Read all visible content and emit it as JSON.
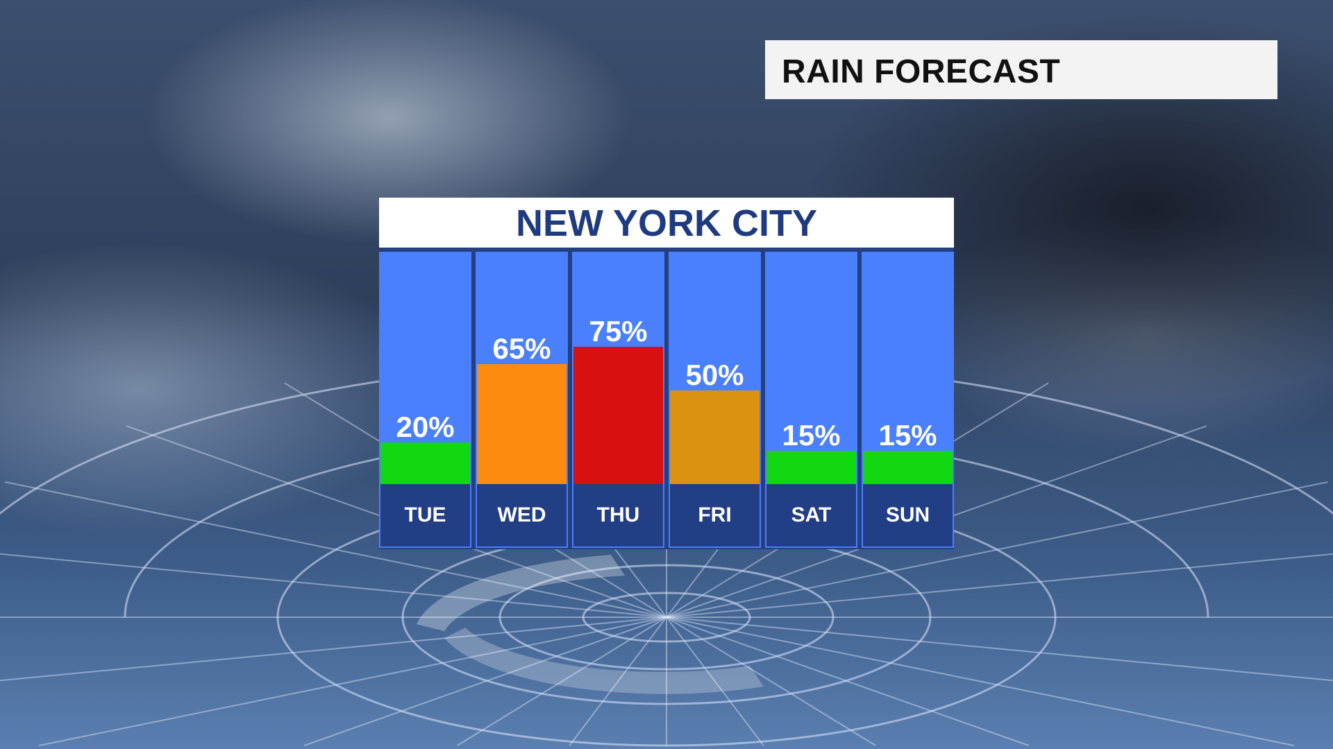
{
  "header": {
    "title": "RAIN FORECAST"
  },
  "chart_data": {
    "type": "bar",
    "title": "NEW YORK CITY",
    "categories": [
      "TUE",
      "WED",
      "THU",
      "FRI",
      "SAT",
      "SUN"
    ],
    "values": [
      20,
      65,
      75,
      50,
      15,
      15
    ],
    "labels": [
      "20%",
      "65%",
      "75%",
      "50%",
      "15%",
      "15%"
    ],
    "unit": "%",
    "bar_colors": [
      "#12d812",
      "#fd8b10",
      "#d81010",
      "#da9210",
      "#12d812",
      "#12d812"
    ],
    "colors": {
      "column_bg": "#4a80fd",
      "label_bg": "#223e85",
      "title_text": "#1f3b80"
    }
  }
}
